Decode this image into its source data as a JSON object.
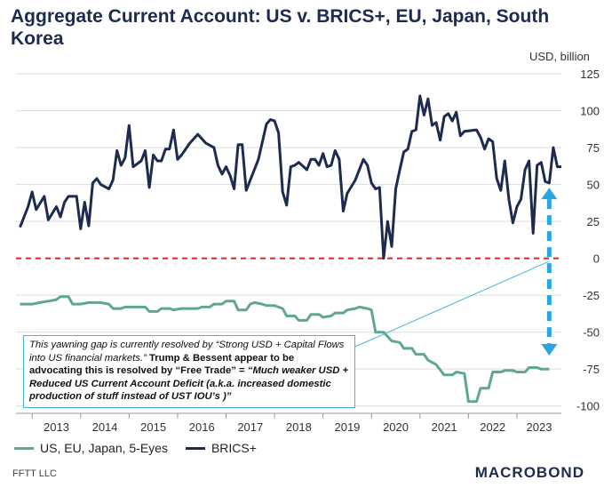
{
  "chart_data": {
    "type": "line",
    "title": "Aggregate Current Account: US v. BRICS+, EU, Japan, South Korea",
    "y_unit": "USD, billion",
    "ylim": [
      -105,
      125
    ],
    "xlim": [
      "2012-09",
      "2023-12"
    ],
    "y_ticks": [
      125,
      100,
      75,
      50,
      25,
      0,
      -25,
      -50,
      -75,
      -100
    ],
    "x_ticks": [
      "2013",
      "2014",
      "2015",
      "2016",
      "2017",
      "2018",
      "2019",
      "2020",
      "2021",
      "2022",
      "2023"
    ],
    "legend_position": "bottom",
    "zero_line_color": "#d62728",
    "series": [
      {
        "name": "US, EU, Japan, 5-Eyes",
        "color": "#5fa98a",
        "points": [
          [
            "2012-10",
            -31
          ],
          [
            "2013-01",
            -31
          ],
          [
            "2013-03",
            -30
          ],
          [
            "2013-05",
            -29
          ],
          [
            "2013-07",
            -28
          ],
          [
            "2013-08",
            -26
          ],
          [
            "2013-10",
            -26
          ],
          [
            "2013-11",
            -31
          ],
          [
            "2014-01",
            -31
          ],
          [
            "2014-03",
            -30
          ],
          [
            "2014-06",
            -30
          ],
          [
            "2014-08",
            -31
          ],
          [
            "2014-09",
            -34
          ],
          [
            "2014-11",
            -34
          ],
          [
            "2014-12",
            -33
          ],
          [
            "2015-03",
            -33
          ],
          [
            "2015-05",
            -33
          ],
          [
            "2015-06",
            -36
          ],
          [
            "2015-08",
            -36
          ],
          [
            "2015-09",
            -34
          ],
          [
            "2015-11",
            -34
          ],
          [
            "2015-12",
            -35
          ],
          [
            "2016-02",
            -34
          ],
          [
            "2016-06",
            -34
          ],
          [
            "2016-07",
            -33
          ],
          [
            "2016-09",
            -33
          ],
          [
            "2016-10",
            -31
          ],
          [
            "2016-12",
            -31
          ],
          [
            "2017-01",
            -29
          ],
          [
            "2017-03",
            -29
          ],
          [
            "2017-04",
            -35
          ],
          [
            "2017-06",
            -35
          ],
          [
            "2017-07",
            -31
          ],
          [
            "2017-08",
            -30
          ],
          [
            "2017-10",
            -31
          ],
          [
            "2017-11",
            -32
          ],
          [
            "2018-01",
            -32
          ],
          [
            "2018-03",
            -34
          ],
          [
            "2018-04",
            -39
          ],
          [
            "2018-06",
            -39
          ],
          [
            "2018-07",
            -42
          ],
          [
            "2018-09",
            -42
          ],
          [
            "2018-10",
            -38
          ],
          [
            "2018-12",
            -38
          ],
          [
            "2019-01",
            -40
          ],
          [
            "2019-03",
            -39
          ],
          [
            "2019-04",
            -37
          ],
          [
            "2019-06",
            -37
          ],
          [
            "2019-07",
            -35
          ],
          [
            "2019-09",
            -34
          ],
          [
            "2019-10",
            -33
          ],
          [
            "2019-12",
            -34
          ],
          [
            "2020-01",
            -35
          ],
          [
            "2020-02",
            -50
          ],
          [
            "2020-04",
            -50
          ],
          [
            "2020-05",
            -53
          ],
          [
            "2020-06",
            -56
          ],
          [
            "2020-08",
            -57
          ],
          [
            "2020-09",
            -61
          ],
          [
            "2020-11",
            -61
          ],
          [
            "2020-12",
            -65
          ],
          [
            "2021-02",
            -65
          ],
          [
            "2021-03",
            -69
          ],
          [
            "2021-05",
            -72
          ],
          [
            "2021-07",
            -79
          ],
          [
            "2021-09",
            -79
          ],
          [
            "2021-10",
            -77
          ],
          [
            "2021-12",
            -78
          ],
          [
            "2022-01",
            -97
          ],
          [
            "2022-03",
            -97
          ],
          [
            "2022-04",
            -88
          ],
          [
            "2022-06",
            -88
          ],
          [
            "2022-07",
            -77
          ],
          [
            "2022-09",
            -77
          ],
          [
            "2022-10",
            -76
          ],
          [
            "2022-12",
            -76
          ],
          [
            "2023-01",
            -77
          ],
          [
            "2023-03",
            -77
          ],
          [
            "2023-04",
            -74
          ],
          [
            "2023-06",
            -74
          ],
          [
            "2023-07",
            -75
          ],
          [
            "2023-09",
            -75
          ]
        ]
      },
      {
        "name": "BRICS+",
        "color": "#1d2b4f",
        "points": [
          [
            "2012-10",
            21
          ],
          [
            "2012-12",
            35
          ],
          [
            "2013-01",
            45
          ],
          [
            "2013-02",
            33
          ],
          [
            "2013-04",
            42
          ],
          [
            "2013-05",
            26
          ],
          [
            "2013-07",
            35
          ],
          [
            "2013-08",
            28
          ],
          [
            "2013-09",
            38
          ],
          [
            "2013-10",
            42
          ],
          [
            "2013-12",
            42
          ],
          [
            "2014-01",
            20
          ],
          [
            "2014-02",
            38
          ],
          [
            "2014-03",
            22
          ],
          [
            "2014-04",
            51
          ],
          [
            "2014-05",
            54
          ],
          [
            "2014-06",
            50
          ],
          [
            "2014-08",
            47
          ],
          [
            "2014-09",
            53
          ],
          [
            "2014-10",
            73
          ],
          [
            "2014-11",
            63
          ],
          [
            "2014-12",
            68
          ],
          [
            "2015-01",
            90
          ],
          [
            "2015-02",
            62
          ],
          [
            "2015-04",
            66
          ],
          [
            "2015-05",
            73
          ],
          [
            "2015-06",
            48
          ],
          [
            "2015-07",
            70
          ],
          [
            "2015-08",
            66
          ],
          [
            "2015-09",
            66
          ],
          [
            "2015-10",
            74
          ],
          [
            "2015-11",
            74
          ],
          [
            "2015-12",
            87
          ],
          [
            "2016-01",
            67
          ],
          [
            "2016-02",
            70
          ],
          [
            "2016-04",
            78
          ],
          [
            "2016-06",
            84
          ],
          [
            "2016-08",
            78
          ],
          [
            "2016-10",
            75
          ],
          [
            "2016-11",
            63
          ],
          [
            "2016-12",
            57
          ],
          [
            "2017-01",
            62
          ],
          [
            "2017-02",
            56
          ],
          [
            "2017-03",
            47
          ],
          [
            "2017-04",
            77
          ],
          [
            "2017-05",
            77
          ],
          [
            "2017-06",
            46
          ],
          [
            "2017-09",
            67
          ],
          [
            "2017-11",
            91
          ],
          [
            "2017-12",
            94
          ],
          [
            "2018-01",
            93
          ],
          [
            "2018-02",
            85
          ],
          [
            "2018-03",
            45
          ],
          [
            "2018-04",
            36
          ],
          [
            "2018-05",
            62
          ],
          [
            "2018-06",
            63
          ],
          [
            "2018-07",
            65
          ],
          [
            "2018-09",
            60
          ],
          [
            "2018-10",
            67
          ],
          [
            "2018-11",
            67
          ],
          [
            "2018-12",
            63
          ],
          [
            "2019-01",
            71
          ],
          [
            "2019-02",
            62
          ],
          [
            "2019-03",
            63
          ],
          [
            "2019-04",
            73
          ],
          [
            "2019-05",
            67
          ],
          [
            "2019-06",
            32
          ],
          [
            "2019-07",
            44
          ],
          [
            "2019-09",
            53
          ],
          [
            "2019-11",
            67
          ],
          [
            "2019-12",
            63
          ],
          [
            "2020-01",
            51
          ],
          [
            "2020-02",
            47
          ],
          [
            "2020-03",
            48
          ],
          [
            "2020-04",
            0
          ],
          [
            "2020-05",
            25
          ],
          [
            "2020-06",
            8
          ],
          [
            "2020-07",
            47
          ],
          [
            "2020-08",
            60
          ],
          [
            "2020-09",
            72
          ],
          [
            "2020-10",
            74
          ],
          [
            "2020-11",
            86
          ],
          [
            "2020-12",
            87
          ],
          [
            "2021-01",
            110
          ],
          [
            "2021-02",
            97
          ],
          [
            "2021-03",
            108
          ],
          [
            "2021-04",
            90
          ],
          [
            "2021-05",
            92
          ],
          [
            "2021-06",
            80
          ],
          [
            "2021-07",
            96
          ],
          [
            "2021-08",
            98
          ],
          [
            "2021-09",
            93
          ],
          [
            "2021-10",
            99
          ],
          [
            "2021-11",
            83
          ],
          [
            "2021-12",
            86
          ],
          [
            "2022-03",
            87
          ],
          [
            "2022-04",
            82
          ],
          [
            "2022-05",
            74
          ],
          [
            "2022-06",
            81
          ],
          [
            "2022-07",
            79
          ],
          [
            "2022-08",
            54
          ],
          [
            "2022-09",
            46
          ],
          [
            "2022-10",
            66
          ],
          [
            "2022-11",
            40
          ],
          [
            "2022-12",
            24
          ],
          [
            "2023-01",
            35
          ],
          [
            "2023-02",
            40
          ],
          [
            "2023-03",
            60
          ],
          [
            "2023-04",
            66
          ],
          [
            "2023-05",
            17
          ],
          [
            "2023-06",
            63
          ],
          [
            "2023-07",
            65
          ],
          [
            "2023-08",
            52
          ],
          [
            "2023-09",
            51
          ],
          [
            "2023-10",
            75
          ],
          [
            "2023-11",
            62
          ],
          [
            "2023-12",
            62
          ]
        ]
      }
    ],
    "annotation": {
      "part1_italic": "This yawning gap is currently resolved by “Strong USD + Capital Flows into US financial markets.”",
      "part2_bold": " Trump & Bessent appear to be advocating this is resolved by “Free Trade” = ",
      "part3_bold_italic": "“Much weaker USD + Reduced US Current Account Deficit (a.k.a. increased domestic production of stuff instead of UST IOU’s )”"
    }
  },
  "legend": [
    {
      "label": "US, EU, Japan, 5-Eyes",
      "color": "#5fa98a"
    },
    {
      "label": "BRICS+",
      "color": "#1d2b4f"
    }
  ],
  "footer": {
    "left": "FFTT LLC",
    "right": "MACROBOND"
  },
  "colors": {
    "accent_arrow": "#2ba4e0",
    "callout_line": "#4ab3dc"
  }
}
